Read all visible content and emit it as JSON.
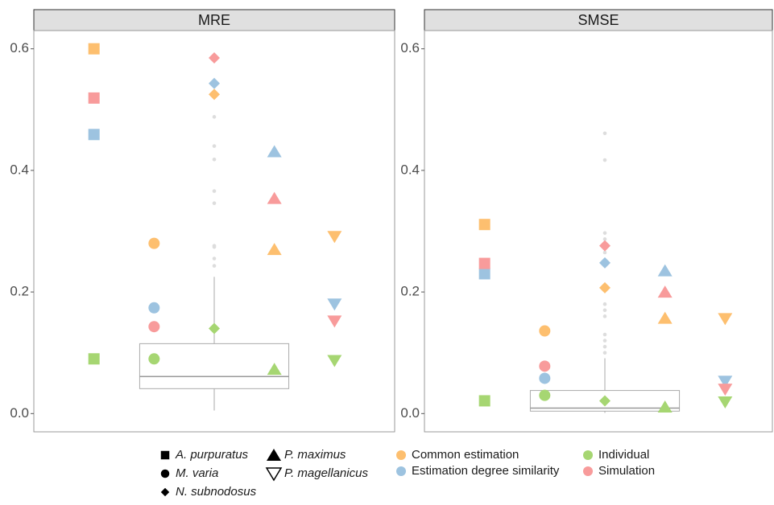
{
  "chart_data": [
    {
      "type": "box-scatter",
      "title": "MRE",
      "categories": [
        "A. purpuratus",
        "M. varia",
        "N. subnodosus",
        "P. maximus",
        "P. magellanicus"
      ],
      "shapes": [
        "square",
        "circle",
        "diamond",
        "triangle",
        "triangle-down"
      ],
      "series": [
        {
          "name": "Common estimation",
          "color": "#FDBF6F",
          "values": [
            0.6,
            0.28,
            0.525,
            0.27,
            0.291
          ]
        },
        {
          "name": "Estimation degree similarity",
          "color": "#9DC3E0",
          "values": [
            0.459,
            0.174,
            0.543,
            0.431,
            0.18
          ]
        },
        {
          "name": "Individual",
          "color": "#A6D672",
          "values": [
            0.09,
            0.09,
            0.14,
            0.073,
            0.087
          ]
        },
        {
          "name": "Simulation",
          "color": "#F89B9B",
          "values": [
            0.519,
            0.143,
            0.585,
            0.354,
            0.152
          ]
        }
      ],
      "box": {
        "whisker_low": 0.005,
        "q1": 0.041,
        "median": 0.061,
        "q3": 0.115,
        "whisker_high": 0.225,
        "outliers": [
          0.488,
          0.44,
          0.418,
          0.366,
          0.346,
          0.276,
          0.274,
          0.255,
          0.243
        ]
      },
      "ylim": [
        -0.03,
        0.63
      ],
      "yticks": [
        {
          "value": 0,
          "label": "0.0"
        },
        0.2,
        0.4,
        0.6
      ]
    },
    {
      "type": "box-scatter",
      "title": "SMSE",
      "series": [
        {
          "values": [
            0.311,
            0.136,
            0.207,
            0.157,
            0.156
          ]
        },
        {
          "values": [
            0.23,
            0.058,
            0.248,
            0.235,
            0.053
          ]
        },
        {
          "values": [
            0.021,
            0.03,
            0.021,
            0.011,
            0.019
          ]
        },
        {
          "values": [
            0.247,
            0.078,
            0.276,
            0.2,
            0.04
          ]
        }
      ],
      "box": {
        "whisker_low": 0.001,
        "q1": 0.004,
        "median": 0.009,
        "q3": 0.038,
        "whisker_high": 0.091,
        "outliers": [
          0.461,
          0.417,
          0.297,
          0.287,
          0.275,
          0.265,
          0.18,
          0.17,
          0.16,
          0.13,
          0.12,
          0.11,
          0.1
        ]
      },
      "ylim": [
        -0.03,
        0.63
      ],
      "yticks": [
        {
          "value": 0,
          "label": "0.0"
        },
        0.2,
        0.4,
        0.6
      ]
    }
  ]
}
